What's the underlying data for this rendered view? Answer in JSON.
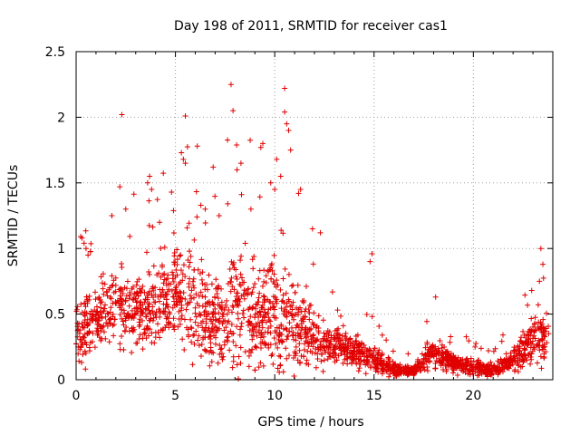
{
  "chart_data": {
    "type": "scatter",
    "title": "Day 198 of 2011, SRMTID for receiver cas1",
    "xlabel": "GPS time / hours",
    "ylabel": "SRMTID / TECUs",
    "xlim": [
      0,
      24
    ],
    "ylim": [
      0,
      2.5
    ],
    "xticks": [
      0,
      5,
      10,
      15,
      20
    ],
    "yticks": [
      0,
      0.5,
      1,
      1.5,
      2,
      2.5
    ],
    "xtick_labels": [
      "0",
      "5",
      "10",
      "15",
      "20"
    ],
    "ytick_labels": [
      "0",
      "0.5",
      "1",
      "1.5",
      "2",
      "2.5"
    ],
    "grid": true,
    "marker": "+",
    "color": "#e00000",
    "series": [
      {
        "name": "cas1",
        "envelope": [
          [
            0,
            0.35,
            0.25
          ],
          [
            1,
            0.45,
            0.25
          ],
          [
            2,
            0.55,
            0.3
          ],
          [
            3,
            0.5,
            0.3
          ],
          [
            4,
            0.55,
            0.35
          ],
          [
            5,
            0.7,
            0.4
          ],
          [
            6,
            0.5,
            0.4
          ],
          [
            7,
            0.45,
            0.35
          ],
          [
            8,
            0.6,
            0.45
          ],
          [
            9,
            0.5,
            0.4
          ],
          [
            10,
            0.55,
            0.45
          ],
          [
            11,
            0.45,
            0.35
          ],
          [
            12,
            0.3,
            0.2
          ],
          [
            13,
            0.25,
            0.15
          ],
          [
            14,
            0.22,
            0.12
          ],
          [
            15,
            0.15,
            0.1
          ],
          [
            16,
            0.08,
            0.05
          ],
          [
            17,
            0.07,
            0.04
          ],
          [
            18,
            0.2,
            0.12
          ],
          [
            19,
            0.12,
            0.08
          ],
          [
            20,
            0.1,
            0.07
          ],
          [
            21,
            0.07,
            0.05
          ],
          [
            22,
            0.15,
            0.1
          ],
          [
            23,
            0.3,
            0.2
          ],
          [
            24,
            0.3,
            0.2
          ]
        ],
        "outliers": [
          [
            2.3,
            2.02
          ],
          [
            5.5,
            2.01
          ],
          [
            7.8,
            2.25
          ],
          [
            7.9,
            2.05
          ],
          [
            10.5,
            2.22
          ],
          [
            10.5,
            2.04
          ],
          [
            10.6,
            1.95
          ],
          [
            10.7,
            1.9
          ],
          [
            9.4,
            1.8
          ],
          [
            9.3,
            1.77
          ],
          [
            6.1,
            1.78
          ],
          [
            5.3,
            1.73
          ],
          [
            5.4,
            1.68
          ],
          [
            5.5,
            1.65
          ],
          [
            3.7,
            1.55
          ],
          [
            3.6,
            1.5
          ],
          [
            2.2,
            1.47
          ],
          [
            3.8,
            1.45
          ],
          [
            6.9,
            1.62
          ],
          [
            8.1,
            1.6
          ],
          [
            8.3,
            1.65
          ],
          [
            10.1,
            1.68
          ],
          [
            10.3,
            1.55
          ],
          [
            10.8,
            1.75
          ],
          [
            9.8,
            1.5
          ],
          [
            10.0,
            1.45
          ],
          [
            11.2,
            1.42
          ],
          [
            11.3,
            1.45
          ],
          [
            12.3,
            1.12
          ],
          [
            14.9,
            0.96
          ],
          [
            14.8,
            0.9
          ],
          [
            18.1,
            0.63
          ],
          [
            23.4,
            1.0
          ],
          [
            23.5,
            0.88
          ],
          [
            0.3,
            1.08
          ],
          [
            0.4,
            1.04
          ],
          [
            0.5,
            1.0
          ],
          [
            0.6,
            0.95
          ],
          [
            1.8,
            1.25
          ],
          [
            2.5,
            1.3
          ],
          [
            4.2,
            1.2
          ],
          [
            6.5,
            1.3
          ],
          [
            7.2,
            1.25
          ],
          [
            8.8,
            1.3
          ],
          [
            11.9,
            1.15
          ]
        ]
      }
    ]
  }
}
